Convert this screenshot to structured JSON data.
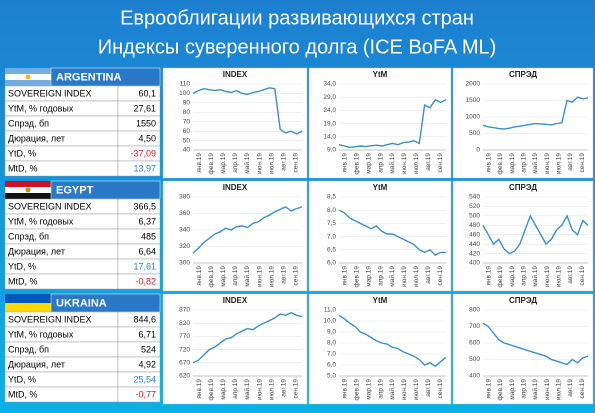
{
  "title": [
    "Еврооблигации развивающихся стран",
    "Индексы суверенного долга (ICE BoFA ML)"
  ],
  "months": [
    "янв.19",
    "фев.19",
    "мар.19",
    "апр.19",
    "май.19",
    "июн.19",
    "июл.19",
    "авг.19",
    "сен.19"
  ],
  "panels": [
    {
      "name": "ARGENTINA",
      "table": [
        {
          "label": "SOVEREIGN INDEX",
          "value": "60,1"
        },
        {
          "label": "YtM, % годовых",
          "value": "27,61"
        },
        {
          "label": "Спрэд, бп",
          "value": "1550"
        },
        {
          "label": "Дюрация, лет",
          "value": "4,50"
        },
        {
          "label": "YtD, %",
          "value": "-37,09",
          "color": "#e02020"
        },
        {
          "label": "MtD, %",
          "value": "13,97",
          "color": "#2f7fd0"
        }
      ],
      "charts": [
        {
          "type": "line",
          "title": "INDEX",
          "color": "#3d8fcc",
          "ylim": [
            40,
            110
          ],
          "yticks": [
            40,
            50,
            60,
            70,
            80,
            90,
            100,
            110
          ],
          "values": [
            100,
            103,
            105,
            104,
            103,
            104,
            102,
            101,
            103,
            100,
            99,
            101,
            102,
            104,
            106,
            105,
            62,
            58,
            60,
            57,
            60
          ]
        },
        {
          "type": "line",
          "title": "YtM",
          "color": "#3d8fcc",
          "ylim": [
            9,
            34
          ],
          "yticks": [
            {
              "value": 9,
              "label": "9,0"
            },
            {
              "value": 14,
              "label": "14,0"
            },
            {
              "value": 19,
              "label": "19,0"
            },
            {
              "value": 24,
              "label": "24,0"
            },
            {
              "value": 29,
              "label": "29,0"
            },
            {
              "value": 34,
              "label": "34,0"
            }
          ],
          "values": [
            11,
            10.5,
            10,
            10.2,
            10.5,
            10.3,
            10.6,
            10.8,
            10.5,
            11,
            11.5,
            11,
            11.8,
            12,
            12.5,
            11.5,
            26,
            25,
            28,
            27,
            28
          ]
        },
        {
          "type": "line",
          "title": "СПРЭД",
          "color": "#3d8fcc",
          "ylim": [
            0,
            2000
          ],
          "yticks": [
            0,
            500,
            1000,
            1500,
            2000
          ],
          "values": [
            750,
            700,
            680,
            650,
            640,
            660,
            700,
            720,
            750,
            780,
            800,
            790,
            780,
            760,
            800,
            820,
            1500,
            1450,
            1600,
            1550,
            1580
          ]
        }
      ]
    },
    {
      "name": "EGYPT",
      "table": [
        {
          "label": "SOVEREIGN INDEX",
          "value": "366,5"
        },
        {
          "label": "YtM, % годовых",
          "value": "6,37"
        },
        {
          "label": "Спрэд, бп",
          "value": "485"
        },
        {
          "label": "Дюрация, лет",
          "value": "6,64"
        },
        {
          "label": "YtD, %",
          "value": "17,61",
          "color": "#2f7fd0"
        },
        {
          "label": "MtD, %",
          "value": "-0,82",
          "color": "#e02020"
        }
      ],
      "charts": [
        {
          "type": "line",
          "title": "INDEX",
          "color": "#3d8fcc",
          "ylim": [
            300,
            380
          ],
          "yticks": [
            300,
            320,
            340,
            360,
            380
          ],
          "values": [
            312,
            318,
            325,
            330,
            335,
            338,
            342,
            340,
            344,
            345,
            343,
            348,
            350,
            355,
            358,
            362,
            365,
            368,
            363,
            366,
            368
          ]
        },
        {
          "type": "line",
          "title": "YtM",
          "color": "#3d8fcc",
          "ylim": [
            6,
            8.5
          ],
          "yticks": [
            {
              "value": 6,
              "label": "6,0"
            },
            {
              "value": 6.5,
              "label": "6,5"
            },
            {
              "value": 7,
              "label": "7,0"
            },
            {
              "value": 7.5,
              "label": "7,5"
            },
            {
              "value": 8,
              "label": "8,0"
            },
            {
              "value": 8.5,
              "label": "8,5"
            }
          ],
          "values": [
            8.0,
            7.9,
            7.7,
            7.6,
            7.5,
            7.4,
            7.3,
            7.4,
            7.2,
            7.1,
            7.1,
            7.0,
            6.9,
            6.8,
            6.7,
            6.5,
            6.4,
            6.5,
            6.3,
            6.4,
            6.4
          ]
        },
        {
          "type": "line",
          "title": "СПРЭД",
          "color": "#3d8fcc",
          "ylim": [
            400,
            540
          ],
          "yticks": [
            400,
            420,
            440,
            460,
            480,
            500,
            520,
            540
          ],
          "values": [
            480,
            460,
            440,
            450,
            430,
            420,
            425,
            440,
            470,
            500,
            480,
            460,
            440,
            450,
            470,
            480,
            500,
            470,
            460,
            490,
            480
          ]
        }
      ]
    },
    {
      "name": "UKRAINA",
      "table": [
        {
          "label": "SOVEREIGN INDEX",
          "value": "844,6"
        },
        {
          "label": "YtM, % годовых",
          "value": "6,71"
        },
        {
          "label": "Спрэд, бп",
          "value": "524"
        },
        {
          "label": "Дюрация, лет",
          "value": "4,92"
        },
        {
          "label": "YtD, %",
          "value": "25,54",
          "color": "#2f7fd0"
        },
        {
          "label": "MtD, %",
          "value": "-0,77",
          "color": "#e02020"
        }
      ],
      "charts": [
        {
          "type": "line",
          "title": "INDEX",
          "color": "#3d8fcc",
          "ylim": [
            620,
            870
          ],
          "yticks": [
            620,
            670,
            720,
            770,
            820,
            870
          ],
          "values": [
            670,
            680,
            700,
            720,
            730,
            745,
            760,
            765,
            780,
            790,
            800,
            795,
            810,
            820,
            830,
            840,
            855,
            850,
            860,
            850,
            845
          ]
        },
        {
          "type": "line",
          "title": "YtM",
          "color": "#3d8fcc",
          "ylim": [
            5,
            11
          ],
          "yticks": [
            {
              "value": 5,
              "label": "5,0"
            },
            {
              "value": 6,
              "label": "6,0"
            },
            {
              "value": 7,
              "label": "7,0"
            },
            {
              "value": 8,
              "label": "8,0"
            },
            {
              "value": 9,
              "label": "9,0"
            },
            {
              "value": 10,
              "label": "10,0"
            },
            {
              "value": 11,
              "label": "11,0"
            }
          ],
          "values": [
            10.5,
            10.2,
            9.8,
            9.5,
            9.0,
            8.8,
            8.5,
            8.2,
            8.0,
            7.9,
            7.6,
            7.5,
            7.2,
            7.0,
            6.8,
            6.5,
            6.0,
            6.2,
            5.9,
            6.3,
            6.7
          ]
        },
        {
          "type": "line",
          "title": "СПРЭД",
          "color": "#3d8fcc",
          "ylim": [
            400,
            800
          ],
          "yticks": [
            400,
            500,
            600,
            700,
            800
          ],
          "values": [
            720,
            700,
            660,
            620,
            600,
            590,
            580,
            570,
            560,
            550,
            540,
            530,
            520,
            500,
            490,
            480,
            470,
            500,
            480,
            510,
            520
          ]
        }
      ]
    }
  ]
}
